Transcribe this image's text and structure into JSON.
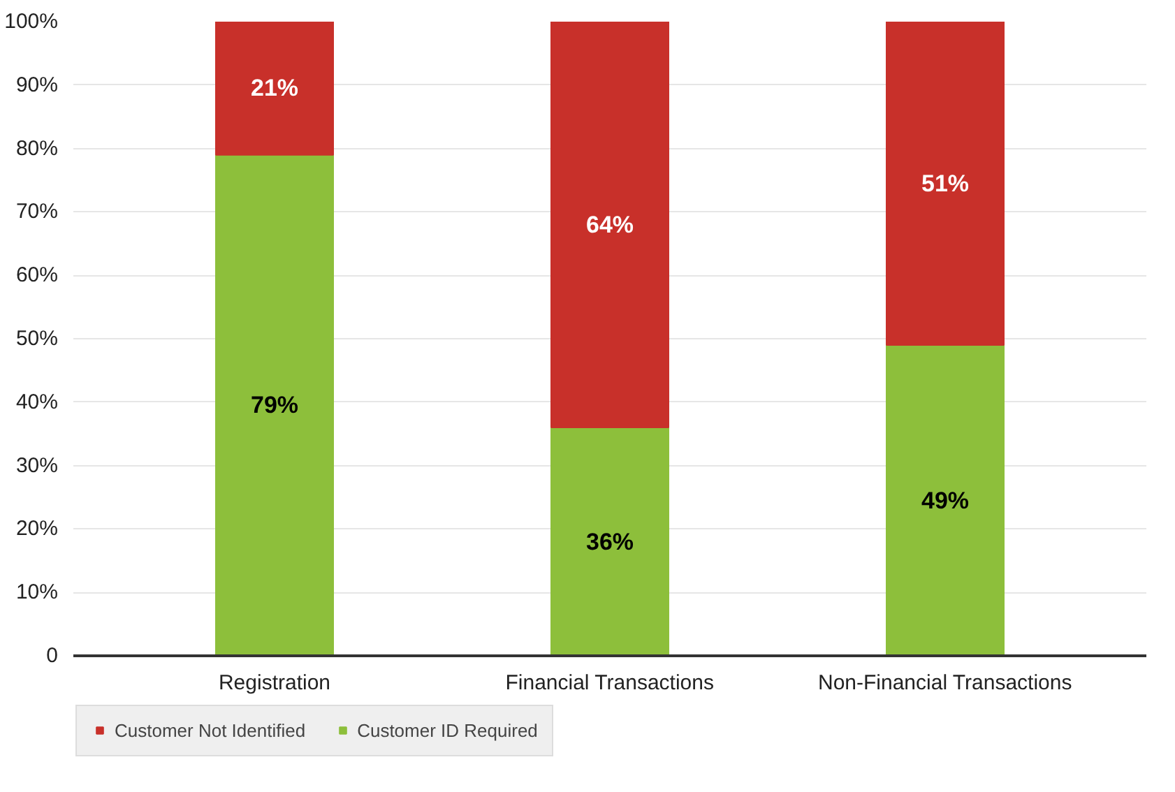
{
  "chart_data": {
    "type": "bar",
    "stacked": true,
    "categories": [
      "Registration",
      "Financial Transactions",
      "Non-Financial Transactions"
    ],
    "series": [
      {
        "name": "Customer ID Required",
        "color": "#8dbf3b",
        "values": [
          79,
          36,
          49
        ],
        "value_labels": [
          "79%",
          "36%",
          "49%"
        ]
      },
      {
        "name": "Customer Not Identified",
        "color": "#c8302a",
        "values": [
          21,
          64,
          51
        ],
        "value_labels": [
          "21%",
          "64%",
          "51%"
        ]
      }
    ],
    "ylim": [
      0,
      100
    ],
    "yticks": [
      {
        "value": 0,
        "label": "0"
      },
      {
        "value": 10,
        "label": "10%"
      },
      {
        "value": 20,
        "label": "20%"
      },
      {
        "value": 30,
        "label": "30%"
      },
      {
        "value": 40,
        "label": "40%"
      },
      {
        "value": 50,
        "label": "50%"
      },
      {
        "value": 60,
        "label": "60%"
      },
      {
        "value": 70,
        "label": "70%"
      },
      {
        "value": 80,
        "label": "80%"
      },
      {
        "value": 90,
        "label": "90%"
      },
      {
        "value": 100,
        "label": "100%"
      }
    ],
    "grid": "y",
    "legend": "bottom"
  }
}
